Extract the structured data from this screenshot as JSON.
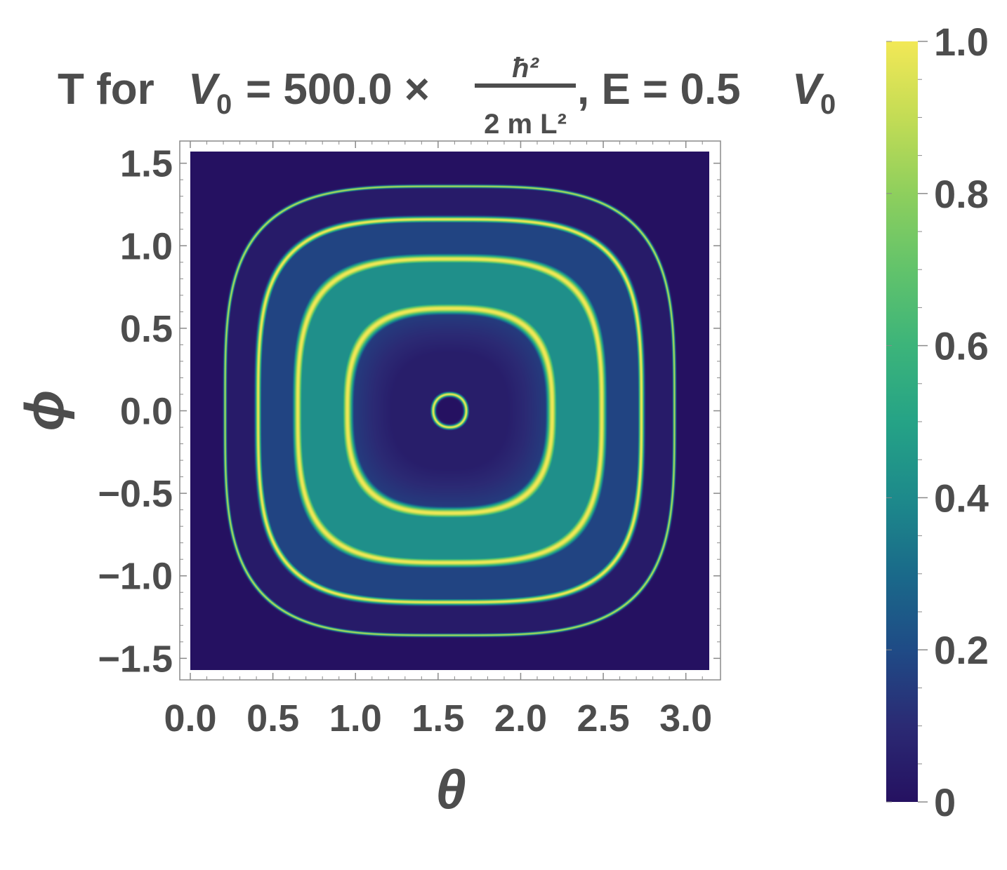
{
  "chart_data": {
    "type": "heatmap",
    "title": {
      "prefix": "T for",
      "v_symbol": "V",
      "v_subscript": "0",
      "equals_value": "= 500.0 ×",
      "fraction_numerator": "ħ²",
      "fraction_denominator": "2 m L²",
      "energy_text": ", E = 0.5",
      "energy_v_symbol": "V",
      "energy_v_subscript": "0"
    },
    "xlabel": "θ",
    "ylabel": "ϕ",
    "xlim": [
      0,
      3.1416
    ],
    "ylim": [
      -1.5708,
      1.5708
    ],
    "x_ticks": [
      0.0,
      0.5,
      1.0,
      1.5,
      2.0,
      2.5,
      3.0
    ],
    "x_tick_labels": [
      "0.0",
      "0.5",
      "1.0",
      "1.5",
      "2.0",
      "2.5",
      "3.0"
    ],
    "y_ticks": [
      1.5,
      1.0,
      0.5,
      0.0,
      -0.5,
      -1.0,
      -1.5
    ],
    "y_tick_labels": [
      "1.5",
      "1.0",
      "0.5",
      "0.0",
      "−0.5",
      "−1.0",
      "−1.5"
    ],
    "colorbar": {
      "range": [
        0,
        1
      ],
      "ticks": [
        1.0,
        0.8,
        0.6,
        0.4,
        0.2,
        0
      ],
      "tick_labels": [
        "1.0",
        "0.8",
        "0.6",
        "0.4",
        "0.2",
        "0"
      ],
      "colormap": "viridis"
    },
    "center": [
      1.5708,
      0
    ],
    "rings": [
      {
        "radius": 0.1,
        "peak": 1.0,
        "width": 0.012
      },
      {
        "radius": 0.62,
        "peak": 1.0,
        "width": 0.03
      },
      {
        "radius": 0.92,
        "peak": 1.0,
        "width": 0.026
      },
      {
        "radius": 1.16,
        "peak": 1.0,
        "width": 0.016
      },
      {
        "radius": 1.36,
        "peak": 0.9,
        "width": 0.008
      }
    ],
    "background_value": 0.0,
    "grid": false,
    "colors": {
      "low": "#251161",
      "high": "#f2e856",
      "text": "#4d4d4d"
    }
  }
}
